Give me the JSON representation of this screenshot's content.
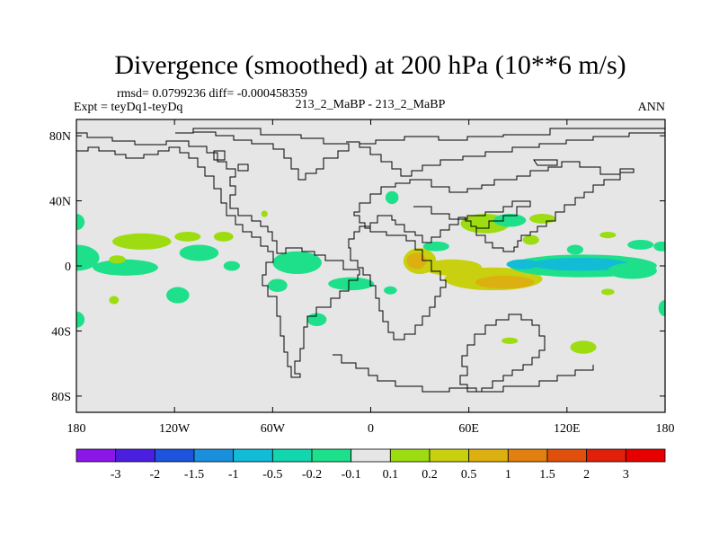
{
  "chart_data": {
    "type": "heatmap",
    "title": "Divergence (smoothed) at 200 hPa (10**6 m/s)",
    "stats_line": "rmsd= 0.0799236 diff= -0.000458359",
    "left_label": "Expt = teyDq1-teyDq",
    "center_label": "213_2_MaBP - 213_2_MaBP",
    "right_label": "ANN",
    "x_axis": {
      "range": [
        -180,
        180
      ],
      "ticks": [
        {
          "value": -180,
          "label": "180"
        },
        {
          "value": -120,
          "label": "120W"
        },
        {
          "value": -60,
          "label": "60W"
        },
        {
          "value": 0,
          "label": "0"
        },
        {
          "value": 60,
          "label": "60E"
        },
        {
          "value": 120,
          "label": "120E"
        },
        {
          "value": 180,
          "label": "180"
        }
      ]
    },
    "y_axis": {
      "range": [
        -90,
        90
      ],
      "ticks": [
        {
          "value": 80,
          "label": "80N"
        },
        {
          "value": 40,
          "label": "40N"
        },
        {
          "value": 0,
          "label": "0"
        },
        {
          "value": -40,
          "label": "40S"
        },
        {
          "value": -80,
          "label": "80S"
        }
      ]
    },
    "colorbar": {
      "boundaries": [
        "-3",
        "-2",
        "-1.5",
        "-1",
        "-0.5",
        "-0.2",
        "-0.1",
        "0.1",
        "0.2",
        "0.5",
        "1",
        "1.5",
        "2",
        "3"
      ],
      "colors": [
        "#8a16e8",
        "#4b1fe0",
        "#1d54dd",
        "#1a8fdb",
        "#12bcd6",
        "#12d6ad",
        "#1ee08a",
        "#e6e6e6",
        "#9edc12",
        "#c8d010",
        "#dcb010",
        "#e0800e",
        "#e0500c",
        "#e02008",
        "#e60000"
      ]
    },
    "background_color": "#e6e6e6",
    "features": [
      {
        "lon": 30,
        "lat": 3,
        "rx": 10,
        "ry": 8,
        "color": "#c8d010"
      },
      {
        "lon": 28,
        "lat": 3,
        "rx": 6,
        "ry": 5,
        "color": "#dcb010"
      },
      {
        "lon": 75,
        "lat": -8,
        "rx": 30,
        "ry": 7,
        "color": "#c8d010"
      },
      {
        "lon": 82,
        "lat": -10,
        "rx": 18,
        "ry": 4,
        "color": "#dcb010"
      },
      {
        "lon": 50,
        "lat": -1,
        "rx": 18,
        "ry": 5,
        "color": "#c8d010"
      },
      {
        "lon": 130,
        "lat": 0,
        "rx": 45,
        "ry": 7,
        "color": "#1ee08a"
      },
      {
        "lon": 128,
        "lat": 1,
        "rx": 30,
        "ry": 4,
        "color": "#12bcd6"
      },
      {
        "lon": 93,
        "lat": 1,
        "rx": 10,
        "ry": 3,
        "color": "#12bcd6"
      },
      {
        "lon": 160,
        "lat": -3,
        "rx": 15,
        "ry": 5,
        "color": "#1ee08a"
      },
      {
        "lon": 12,
        "lat": -15,
        "rx": 4,
        "ry": 2.5,
        "color": "#1ee08a"
      },
      {
        "lon": 70,
        "lat": 26,
        "rx": 15,
        "ry": 6,
        "color": "#9edc12"
      },
      {
        "lon": 85,
        "lat": 28,
        "rx": 10,
        "ry": 4,
        "color": "#1ee08a"
      },
      {
        "lon": 105,
        "lat": 29,
        "rx": 8,
        "ry": 3,
        "color": "#9edc12"
      },
      {
        "lon": 98,
        "lat": 16,
        "rx": 5,
        "ry": 3,
        "color": "#9edc12"
      },
      {
        "lon": 145,
        "lat": 19,
        "rx": 5,
        "ry": 2,
        "color": "#9edc12"
      },
      {
        "lon": 165,
        "lat": 13,
        "rx": 8,
        "ry": 3,
        "color": "#1ee08a"
      },
      {
        "lon": 178,
        "lat": 12,
        "rx": 5,
        "ry": 3,
        "color": "#1ee08a"
      },
      {
        "lon": 125,
        "lat": 10,
        "rx": 5,
        "ry": 3,
        "color": "#1ee08a"
      },
      {
        "lon": 40,
        "lat": 12,
        "rx": 8,
        "ry": 3,
        "color": "#1ee08a"
      },
      {
        "lon": 13,
        "lat": 42,
        "rx": 4,
        "ry": 4,
        "color": "#1ee08a"
      },
      {
        "lon": -180,
        "lat": 27,
        "rx": 5,
        "ry": 5,
        "color": "#1ee08a"
      },
      {
        "lon": -140,
        "lat": 15,
        "rx": 18,
        "ry": 5,
        "color": "#9edc12"
      },
      {
        "lon": -112,
        "lat": 18,
        "rx": 8,
        "ry": 3,
        "color": "#9edc12"
      },
      {
        "lon": -90,
        "lat": 18,
        "rx": 6,
        "ry": 3,
        "color": "#9edc12"
      },
      {
        "lon": -180,
        "lat": 5,
        "rx": 14,
        "ry": 8,
        "color": "#1ee08a"
      },
      {
        "lon": -150,
        "lat": -1,
        "rx": 20,
        "ry": 5,
        "color": "#1ee08a"
      },
      {
        "lon": -155,
        "lat": 4,
        "rx": 5,
        "ry": 2.5,
        "color": "#9edc12"
      },
      {
        "lon": -105,
        "lat": 8,
        "rx": 12,
        "ry": 5,
        "color": "#1ee08a"
      },
      {
        "lon": -85,
        "lat": 0,
        "rx": 5,
        "ry": 3,
        "color": "#1ee08a"
      },
      {
        "lon": -45,
        "lat": 2,
        "rx": 15,
        "ry": 7,
        "color": "#1ee08a"
      },
      {
        "lon": -57,
        "lat": -12,
        "rx": 6,
        "ry": 4,
        "color": "#1ee08a"
      },
      {
        "lon": -12,
        "lat": -11,
        "rx": 14,
        "ry": 4,
        "color": "#1ee08a"
      },
      {
        "lon": -180,
        "lat": -33,
        "rx": 5,
        "ry": 5,
        "color": "#1ee08a"
      },
      {
        "lon": -157,
        "lat": -21,
        "rx": 3,
        "ry": 2.5,
        "color": "#9edc12"
      },
      {
        "lon": -118,
        "lat": -18,
        "rx": 7,
        "ry": 5,
        "color": "#1ee08a"
      },
      {
        "lon": -33,
        "lat": -33,
        "rx": 6,
        "ry": 4,
        "color": "#1ee08a"
      },
      {
        "lon": 180,
        "lat": -26,
        "rx": 4,
        "ry": 5,
        "color": "#1ee08a"
      },
      {
        "lon": 130,
        "lat": -50,
        "rx": 8,
        "ry": 4,
        "color": "#9edc12"
      },
      {
        "lon": 85,
        "lat": -46,
        "rx": 5,
        "ry": 2,
        "color": "#9edc12"
      },
      {
        "lon": 145,
        "lat": -16,
        "rx": 4,
        "ry": 2,
        "color": "#9edc12"
      },
      {
        "lon": -65,
        "lat": 32,
        "rx": 2,
        "ry": 2,
        "color": "#9edc12"
      }
    ]
  }
}
